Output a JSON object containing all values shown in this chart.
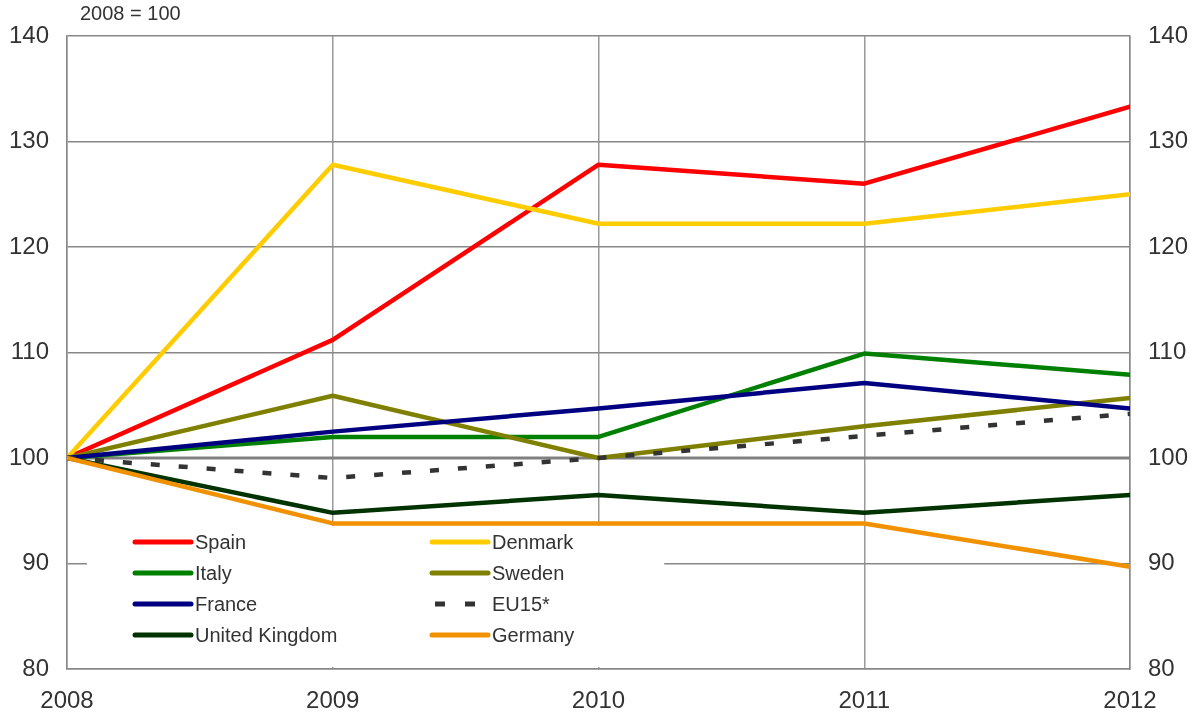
{
  "chart_data": {
    "type": "line",
    "ylabel": "2008 = 100",
    "x": [
      2008,
      2009,
      2010,
      2011,
      2012
    ],
    "xlim": [
      2008,
      2012
    ],
    "xticks": [
      2008,
      2009,
      2010,
      2011,
      2012
    ],
    "ylim": [
      80,
      140
    ],
    "yticks": [
      80,
      90,
      100,
      110,
      120,
      130,
      140
    ],
    "y2lim": [
      80,
      140
    ],
    "y2ticks": [
      80,
      90,
      100,
      110,
      120,
      130,
      140
    ],
    "grid": true,
    "legend": "bottom left",
    "marker": "none",
    "ref_lines": [
      {
        "axis": "y",
        "value": 100,
        "color": "#808080"
      }
    ],
    "series": [
      {
        "name": "Spain",
        "color": "#ff0000",
        "values": [
          100,
          111.2,
          127.8,
          126.0,
          133.3
        ]
      },
      {
        "name": "Denmark",
        "color": "#ffcc00",
        "values": [
          100,
          127.8,
          122.2,
          122.2,
          125.0
        ]
      },
      {
        "name": "Italy",
        "color": "#008000",
        "values": [
          100,
          102.0,
          102.0,
          109.9,
          107.9
        ]
      },
      {
        "name": "Sweden",
        "color": "#808000",
        "values": [
          100,
          105.9,
          100.0,
          103.0,
          105.7
        ]
      },
      {
        "name": "France",
        "color": "#000080",
        "values": [
          100,
          102.5,
          104.7,
          107.1,
          104.7
        ]
      },
      {
        "name": "EU15*",
        "color": "#333333",
        "line_style": "dashed",
        "values": [
          100,
          98.1,
          100.0,
          102.1,
          104.2
        ]
      },
      {
        "name": "United Kingdom",
        "color": "#003300",
        "values": [
          100,
          94.8,
          96.5,
          94.8,
          96.5
        ]
      },
      {
        "name": "Germany",
        "color": "#f29100",
        "values": [
          100,
          93.8,
          93.8,
          93.8,
          89.7
        ]
      }
    ]
  }
}
